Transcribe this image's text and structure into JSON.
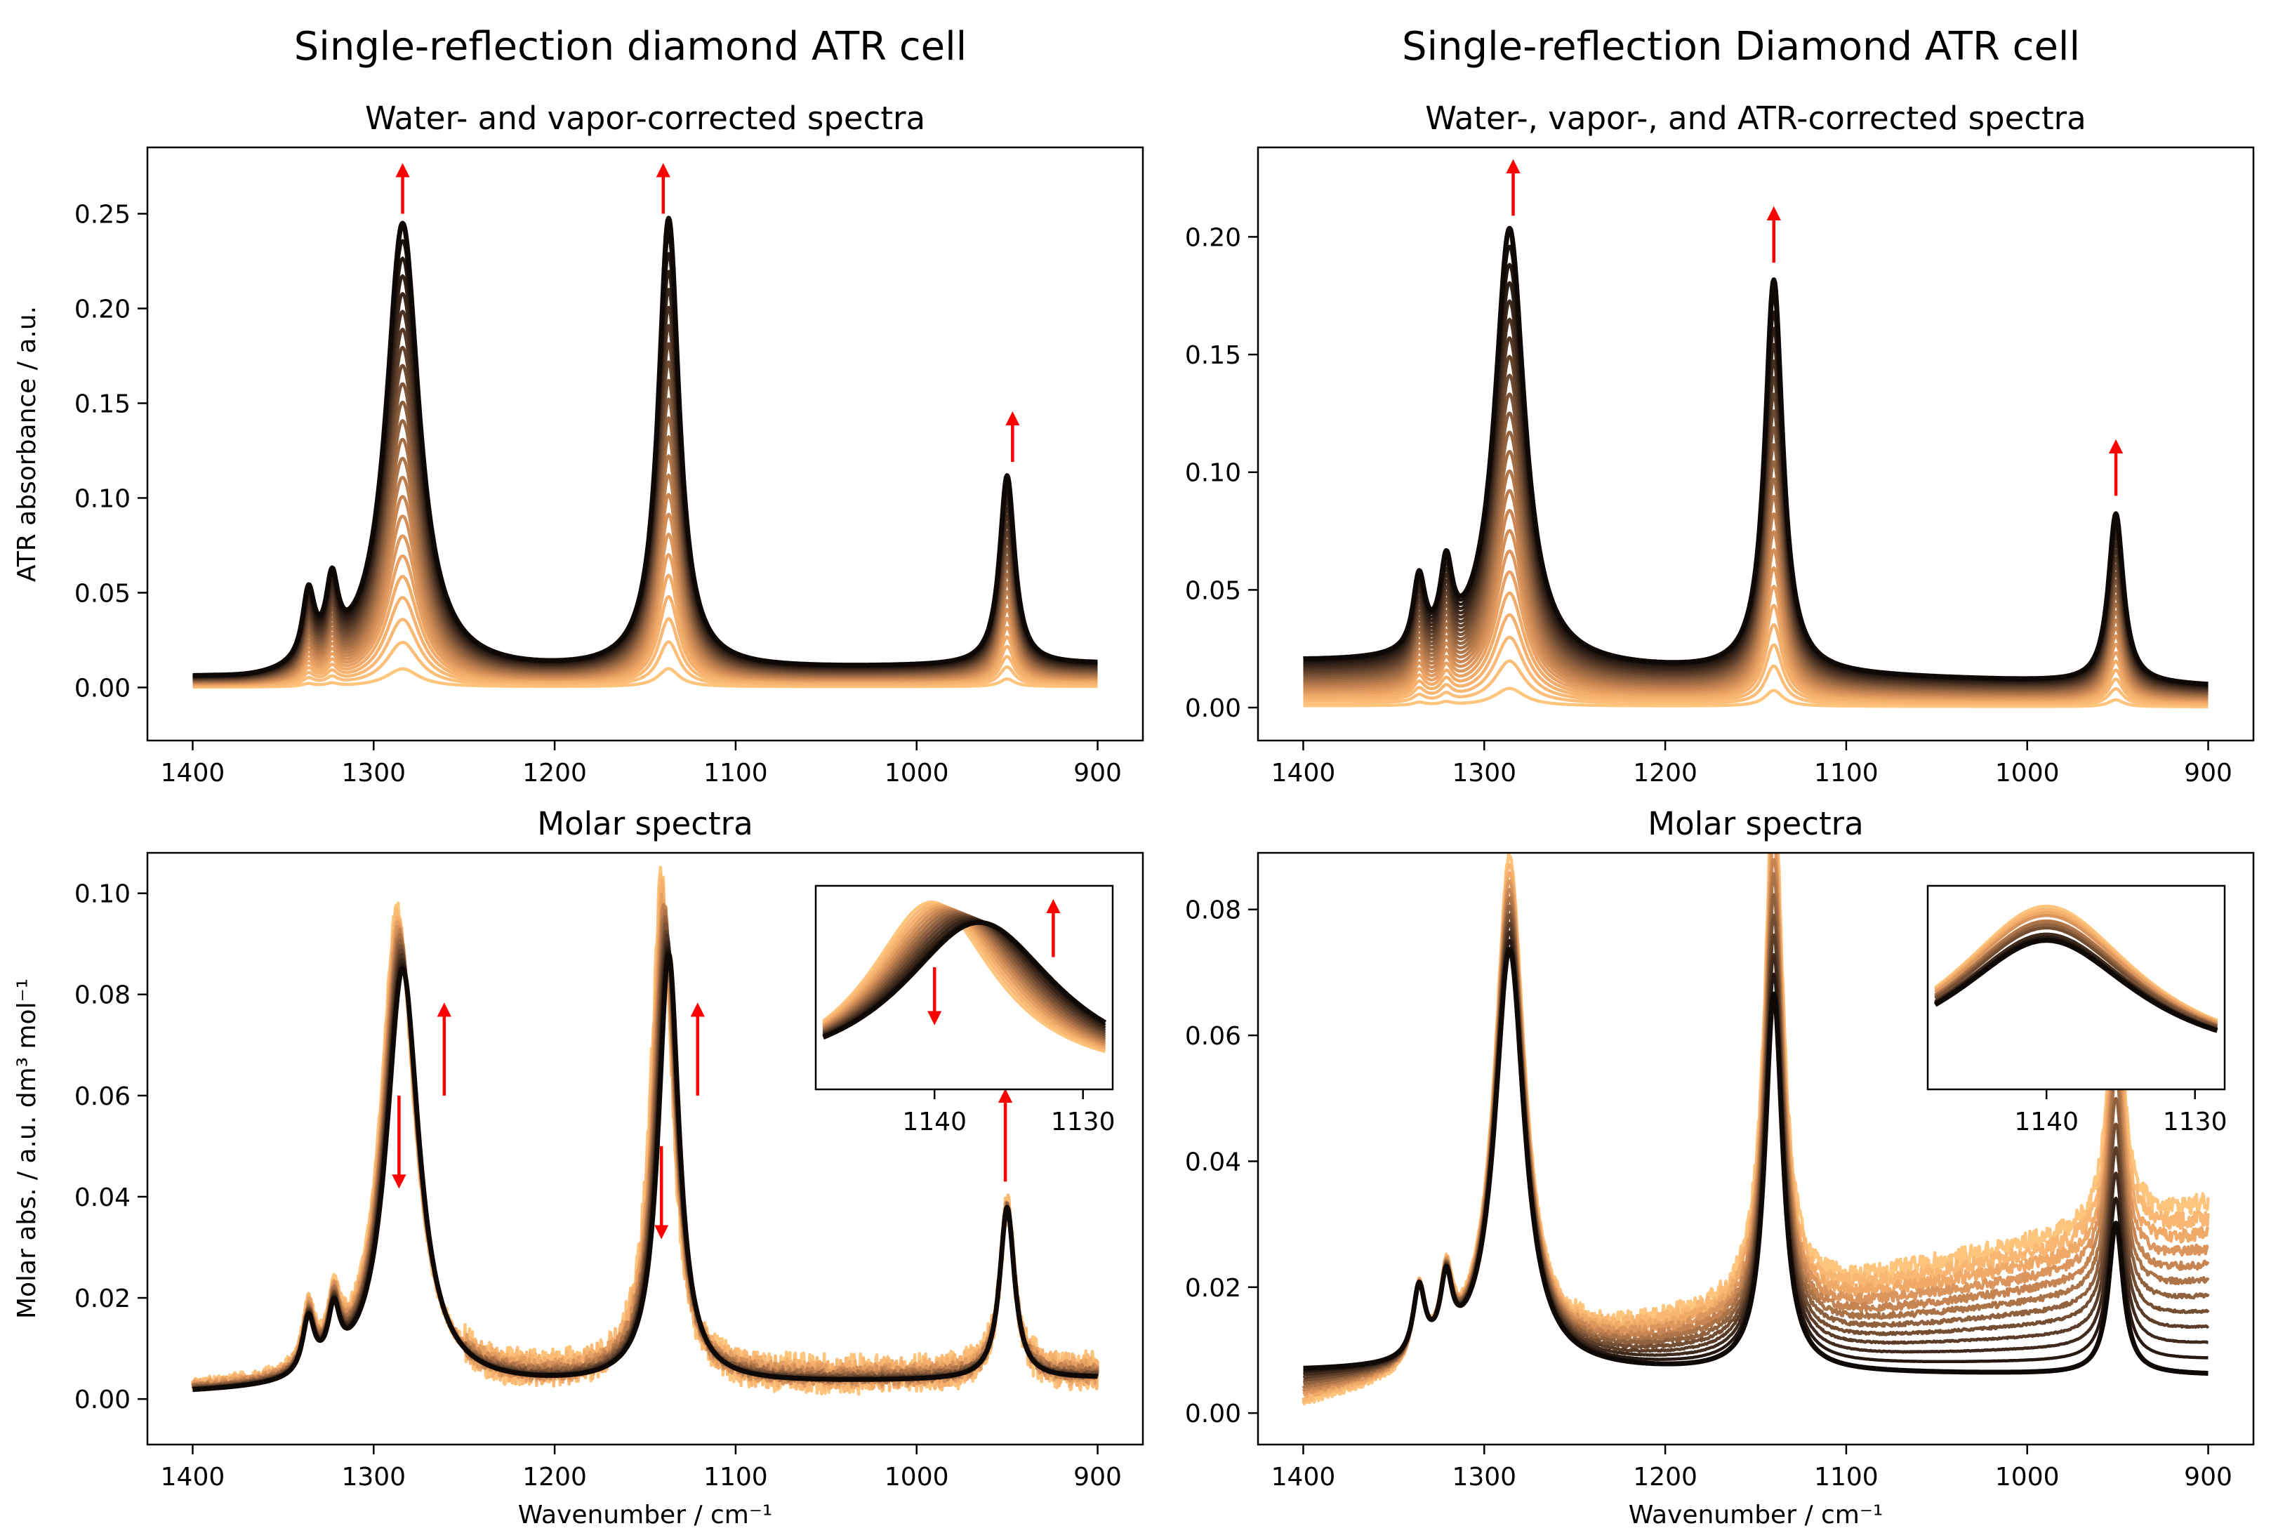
{
  "figure": {
    "left_column_title": "Single-reflection diamond ATR cell",
    "right_column_title": "Single-reflection Diamond ATR cell",
    "colormap": [
      "#ffc57d",
      "#f4ac6a",
      "#cf8a55",
      "#9e6a43",
      "#6b4830",
      "#3b271b",
      "#0e0907"
    ],
    "arrow_color": "#ff0000"
  },
  "chart_data": [
    {
      "id": "top-left",
      "type": "line",
      "title": "Water- and vapor-corrected spectra",
      "xlabel": "",
      "ylabel": "ATR absorbance / a.u.",
      "xlim": [
        1425,
        875
      ],
      "ylim": [
        -0.028,
        0.285
      ],
      "xticks": [
        1400,
        1300,
        1200,
        1100,
        1000,
        900
      ],
      "xtick_labels": [
        "1400",
        "1300",
        "1200",
        "1100",
        "1000",
        "900"
      ],
      "yticks": [
        0.0,
        0.05,
        0.1,
        0.15,
        0.2,
        0.25
      ],
      "ytick_labels": [
        "0.00",
        "0.05",
        "0.10",
        "0.15",
        "0.20",
        "0.25"
      ],
      "n_series": 24,
      "final_series": {
        "baseline_start": 0.004,
        "baseline_end": 0.012,
        "baseline_dip": -0.002,
        "peaks": [
          {
            "center": 1336,
            "height": 0.036,
            "width": 4
          },
          {
            "center": 1323,
            "height": 0.037,
            "width": 4
          },
          {
            "center": 1284,
            "height": 0.238,
            "width": 11
          },
          {
            "center": 1137,
            "height": 0.238,
            "width": 7
          },
          {
            "center": 950,
            "height": 0.1,
            "width": 5
          }
        ]
      },
      "scale_range": [
        0.0,
        1.0
      ],
      "offset_range": [
        0.0,
        0.0
      ],
      "arrows": [
        {
          "x": 1284,
          "y_from": 0.25,
          "y_to": 0.273,
          "direction": "up"
        },
        {
          "x": 1140,
          "y_from": 0.25,
          "y_to": 0.273,
          "direction": "up"
        },
        {
          "x": 947,
          "y_from": 0.119,
          "y_to": 0.142,
          "direction": "up"
        }
      ]
    },
    {
      "id": "top-right",
      "type": "line",
      "title": "Water-, vapor-, and ATR-corrected spectra",
      "xlabel": "",
      "ylabel": "",
      "xlim": [
        1425,
        875
      ],
      "ylim": [
        -0.014,
        0.238
      ],
      "xticks": [
        1400,
        1300,
        1200,
        1100,
        1000,
        900
      ],
      "xtick_labels": [
        "1400",
        "1300",
        "1200",
        "1100",
        "1000",
        "900"
      ],
      "yticks": [
        0.0,
        0.05,
        0.1,
        0.15,
        0.2
      ],
      "ytick_labels": [
        "0.00",
        "0.05",
        "0.10",
        "0.15",
        "0.20"
      ],
      "n_series": 24,
      "final_series": {
        "baseline_start": 0.019,
        "baseline_end": 0.009,
        "baseline_dip": 0.0,
        "peaks": [
          {
            "center": 1336,
            "height": 0.031,
            "width": 4
          },
          {
            "center": 1321,
            "height": 0.033,
            "width": 4
          },
          {
            "center": 1286,
            "height": 0.186,
            "width": 10
          },
          {
            "center": 1140,
            "height": 0.167,
            "width": 6
          },
          {
            "center": 951,
            "height": 0.072,
            "width": 5
          }
        ]
      },
      "scale_range": [
        0.0,
        1.0
      ],
      "offset_range": [
        0.0,
        0.0
      ],
      "arrows": [
        {
          "x": 1284,
          "y_from": 0.209,
          "y_to": 0.23,
          "direction": "up"
        },
        {
          "x": 1140,
          "y_from": 0.189,
          "y_to": 0.21,
          "direction": "up"
        },
        {
          "x": 951,
          "y_from": 0.09,
          "y_to": 0.111,
          "direction": "up"
        }
      ]
    },
    {
      "id": "bottom-left",
      "type": "line",
      "title": "Molar spectra",
      "xlabel": "Wavenumber / cm⁻¹",
      "ylabel": "Molar abs. / a.u. dm³ mol⁻¹",
      "xlim": [
        1425,
        875
      ],
      "ylim": [
        -0.009,
        0.108
      ],
      "xticks": [
        1400,
        1300,
        1200,
        1100,
        1000,
        900
      ],
      "xtick_labels": [
        "1400",
        "1300",
        "1200",
        "1100",
        "1000",
        "900"
      ],
      "yticks": [
        0.0,
        0.02,
        0.04,
        0.06,
        0.08,
        0.1
      ],
      "ytick_labels": [
        "0.00",
        "0.02",
        "0.04",
        "0.06",
        "0.08",
        "0.10"
      ],
      "n_series": 14,
      "final_series": {
        "baseline_start": 0.001,
        "baseline_end": 0.004,
        "baseline_dip": 0.0,
        "peaks": [
          {
            "center": 1336,
            "height": 0.011,
            "width": 4
          },
          {
            "center": 1322,
            "height": 0.011,
            "width": 4
          },
          {
            "center": 1284,
            "height": 0.083,
            "width": 11
          },
          {
            "center": 1137,
            "height": 0.085,
            "width": 7
          },
          {
            "center": 950,
            "height": 0.034,
            "width": 5
          }
        ]
      },
      "first_series": {
        "baseline_start": 0.002,
        "baseline_end": 0.005,
        "baseline_dip": 0.0,
        "peaks": [
          {
            "center": 1336,
            "height": 0.012,
            "width": 4
          },
          {
            "center": 1322,
            "height": 0.012,
            "width": 4
          },
          {
            "center": 1287,
            "height": 0.094,
            "width": 11
          },
          {
            "center": 1141,
            "height": 0.099,
            "width": 7
          },
          {
            "center": 950,
            "height": 0.033,
            "width": 5
          }
        ],
        "noise": 0.004
      },
      "arrows": [
        {
          "x": 1286,
          "y_from": 0.06,
          "y_to": 0.043,
          "direction": "down"
        },
        {
          "x": 1261,
          "y_from": 0.06,
          "y_to": 0.077,
          "direction": "up"
        },
        {
          "x": 1141,
          "y_from": 0.05,
          "y_to": 0.033,
          "direction": "down"
        },
        {
          "x": 1121,
          "y_from": 0.06,
          "y_to": 0.077,
          "direction": "up"
        },
        {
          "x": 951,
          "y_from": 0.043,
          "y_to": 0.06,
          "direction": "up"
        }
      ],
      "inset": {
        "xlim": [
          1148,
          1128
        ],
        "ylim": [
          0,
          1
        ],
        "xticks": [
          1140,
          1130
        ],
        "xtick_labels": [
          "1140",
          "1130"
        ],
        "first_peak_center": 1140.2,
        "last_peak_center": 1137.0,
        "arrows": [
          {
            "x": 1140,
            "y_from": 0.6,
            "y_to": 0.35,
            "direction": "down"
          },
          {
            "x": 1132,
            "y_from": 0.65,
            "y_to": 0.9,
            "direction": "up"
          }
        ]
      }
    },
    {
      "id": "bottom-right",
      "type": "line",
      "title": "Molar spectra",
      "xlabel": "Wavenumber / cm⁻¹",
      "ylabel": "",
      "xlim": [
        1425,
        875
      ],
      "ylim": [
        -0.005,
        0.089
      ],
      "xticks": [
        1400,
        1300,
        1200,
        1100,
        1000,
        900
      ],
      "xtick_labels": [
        "1400",
        "1300",
        "1200",
        "1100",
        "1000",
        "900"
      ],
      "yticks": [
        0.0,
        0.02,
        0.04,
        0.06,
        0.08
      ],
      "ytick_labels": [
        "0.00",
        "0.02",
        "0.04",
        "0.06",
        "0.08"
      ],
      "n_series": 12,
      "final_series": {
        "baseline_start": 0.0065,
        "baseline_end": 0.006,
        "baseline_dip": 0.0,
        "peaks": [
          {
            "center": 1336,
            "height": 0.011,
            "width": 4
          },
          {
            "center": 1321,
            "height": 0.011,
            "width": 4
          },
          {
            "center": 1286,
            "height": 0.067,
            "width": 10
          },
          {
            "center": 1140,
            "height": 0.06,
            "width": 6
          },
          {
            "center": 951,
            "height": 0.024,
            "width": 5
          }
        ]
      },
      "first_series": {
        "baseline_start": 0.001,
        "baseline_end": 0.033,
        "baseline_dip": 0.0,
        "peaks": [
          {
            "center": 1336,
            "height": 0.012,
            "width": 4
          },
          {
            "center": 1321,
            "height": 0.012,
            "width": 4
          },
          {
            "center": 1286,
            "height": 0.08,
            "width": 10
          },
          {
            "center": 1140,
            "height": 0.083,
            "width": 6
          },
          {
            "center": 951,
            "height": 0.044,
            "width": 5
          }
        ],
        "noise": 0.0015
      },
      "arrows": [],
      "inset": {
        "xlim": [
          1148,
          1128
        ],
        "ylim": [
          0,
          1
        ],
        "xticks": [
          1140,
          1130
        ],
        "xtick_labels": [
          "1140",
          "1130"
        ],
        "first_peak_center": 1140.0,
        "last_peak_center": 1140.0,
        "arrows": []
      }
    }
  ]
}
